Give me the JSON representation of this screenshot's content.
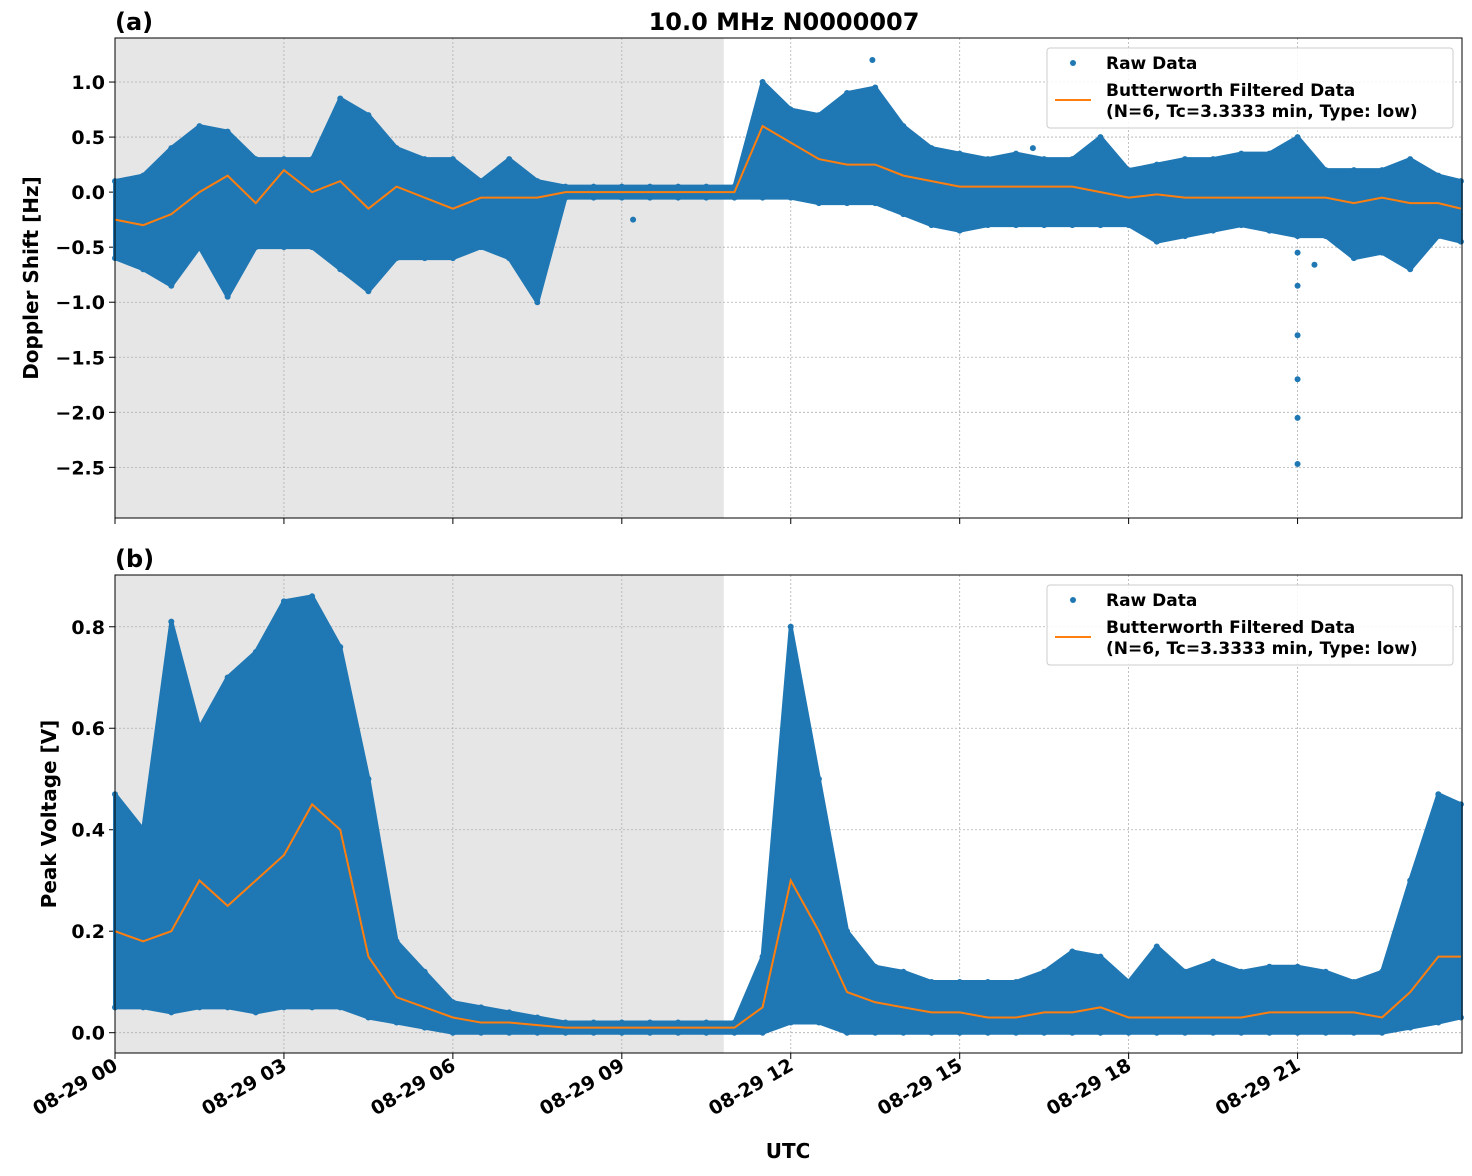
{
  "title": "10.0 MHz N0000007",
  "colors": {
    "raw": "#1f77b4",
    "filtered": "#ff7f0e",
    "shade": "#e6e6e6",
    "grid": "#b0b0b0"
  },
  "chart_data": [
    {
      "type": "scatter+line",
      "panel_label": "(a)",
      "ylabel": "Doppler Shift [Hz]",
      "xlabel": "",
      "xlim_hours": [
        0,
        23.92
      ],
      "ylim": [
        -2.96,
        1.4
      ],
      "yticks": [
        1.0,
        0.5,
        0.0,
        -0.5,
        -1.0,
        -1.5,
        -2.0,
        -2.5
      ],
      "ytick_labels": [
        "1.0",
        "0.5",
        "0.0",
        "−0.5",
        "−1.0",
        "−1.5",
        "−2.0",
        "−2.5"
      ],
      "xticks_hours": [
        0,
        3,
        6,
        9,
        12,
        15,
        18,
        21
      ],
      "xtick_labels": [
        "08-29 00",
        "08-29 03",
        "08-29 06",
        "08-29 09",
        "08-29 12",
        "08-29 15",
        "08-29 18",
        "08-29 21"
      ],
      "shaded_hours": [
        0,
        10.81
      ],
      "grid": true,
      "legend_position": "top-right",
      "legend": [
        "Raw Data",
        "Butterworth Filtered Data",
        "(N=6, Tc=3.3333 min, Type: low)"
      ],
      "x_hours": [
        0,
        0.5,
        1,
        1.5,
        2,
        2.5,
        3,
        3.5,
        4,
        4.5,
        5,
        5.5,
        6,
        6.5,
        7,
        7.5,
        8,
        8.5,
        9,
        9.5,
        10,
        10.5,
        11,
        11.5,
        12,
        12.5,
        13,
        13.5,
        14,
        14.5,
        15,
        15.5,
        16,
        16.5,
        17,
        17.5,
        18,
        18.5,
        19,
        19.5,
        20,
        20.5,
        21,
        21.5,
        22,
        22.5,
        23,
        23.5,
        23.9
      ],
      "series": [
        {
          "name": "Butterworth Filtered Data",
          "kind": "line",
          "values": [
            -0.25,
            -0.3,
            -0.2,
            0.0,
            0.15,
            -0.1,
            0.2,
            0.0,
            0.1,
            -0.15,
            0.05,
            -0.05,
            -0.15,
            -0.05,
            -0.05,
            -0.05,
            0.0,
            0.0,
            0.0,
            0.0,
            0.0,
            0.0,
            0.0,
            0.6,
            0.45,
            0.3,
            0.25,
            0.25,
            0.15,
            0.1,
            0.05,
            0.05,
            0.05,
            0.05,
            0.05,
            0.0,
            -0.05,
            -0.02,
            -0.05,
            -0.05,
            -0.05,
            -0.05,
            -0.05,
            -0.05,
            -0.1,
            -0.05,
            -0.1,
            -0.1,
            -0.15
          ]
        },
        {
          "name": "Raw Data max",
          "kind": "raw_envelope_max",
          "values": [
            0.1,
            0.15,
            0.4,
            0.6,
            0.55,
            0.3,
            0.3,
            0.3,
            0.85,
            0.7,
            0.4,
            0.3,
            0.3,
            0.1,
            0.3,
            0.1,
            0.05,
            0.05,
            0.05,
            0.05,
            0.05,
            0.05,
            0.05,
            1.0,
            0.75,
            0.7,
            0.9,
            0.95,
            0.6,
            0.4,
            0.35,
            0.3,
            0.35,
            0.3,
            0.3,
            0.5,
            0.2,
            0.25,
            0.3,
            0.3,
            0.35,
            0.35,
            0.5,
            0.2,
            0.2,
            0.2,
            0.3,
            0.15,
            0.1
          ]
        },
        {
          "name": "Raw Data min",
          "kind": "raw_envelope_min",
          "values": [
            -0.6,
            -0.7,
            -0.85,
            -0.5,
            -0.95,
            -0.5,
            -0.5,
            -0.5,
            -0.7,
            -0.9,
            -0.6,
            -0.6,
            -0.6,
            -0.5,
            -0.6,
            -1.0,
            -0.05,
            -0.05,
            -0.05,
            -0.05,
            -0.05,
            -0.05,
            -0.05,
            -0.05,
            -0.05,
            -0.1,
            -0.1,
            -0.1,
            -0.2,
            -0.3,
            -0.35,
            -0.3,
            -0.3,
            -0.3,
            -0.3,
            -0.3,
            -0.3,
            -0.45,
            -0.4,
            -0.35,
            -0.3,
            -0.35,
            -0.4,
            -0.4,
            -0.6,
            -0.55,
            -0.7,
            -0.4,
            -0.45
          ]
        },
        {
          "name": "Raw Data outliers",
          "kind": "raw_points",
          "x_hours": [
            13.45,
            16.3,
            21.0,
            21.0,
            21.0,
            21.0,
            21.0,
            21.0,
            21.3,
            9.2
          ],
          "values": [
            1.2,
            0.4,
            -0.55,
            -0.85,
            -1.3,
            -1.7,
            -2.05,
            -2.47,
            -0.66,
            -0.25
          ]
        }
      ]
    },
    {
      "type": "scatter+line",
      "panel_label": "(b)",
      "ylabel": "Peak Voltage [V]",
      "xlabel": "UTC",
      "xlim_hours": [
        0,
        23.92
      ],
      "ylim": [
        -0.04,
        0.902
      ],
      "yticks": [
        0.0,
        0.2,
        0.4,
        0.6,
        0.8
      ],
      "ytick_labels": [
        "0.0",
        "0.2",
        "0.4",
        "0.6",
        "0.8"
      ],
      "xticks_hours": [
        0,
        3,
        6,
        9,
        12,
        15,
        18,
        21
      ],
      "xtick_labels": [
        "08-29 00",
        "08-29 03",
        "08-29 06",
        "08-29 09",
        "08-29 12",
        "08-29 15",
        "08-29 18",
        "08-29 21"
      ],
      "shaded_hours": [
        0,
        10.81
      ],
      "grid": true,
      "legend_position": "top-right",
      "legend": [
        "Raw Data",
        "Butterworth Filtered Data",
        "(N=6, Tc=3.3333 min, Type: low)"
      ],
      "x_hours": [
        0,
        0.5,
        1,
        1.5,
        2,
        2.5,
        3,
        3.5,
        4,
        4.5,
        5,
        5.5,
        6,
        6.5,
        7,
        7.5,
        8,
        8.5,
        9,
        9.5,
        10,
        10.5,
        11,
        11.5,
        12,
        12.5,
        13,
        13.5,
        14,
        14.5,
        15,
        15.5,
        16,
        16.5,
        17,
        17.5,
        18,
        18.5,
        19,
        19.5,
        20,
        20.5,
        21,
        21.5,
        22,
        22.5,
        23,
        23.5,
        23.9
      ],
      "series": [
        {
          "name": "Butterworth Filtered Data",
          "kind": "line",
          "values": [
            0.2,
            0.18,
            0.2,
            0.3,
            0.25,
            0.3,
            0.35,
            0.45,
            0.4,
            0.15,
            0.07,
            0.05,
            0.03,
            0.02,
            0.02,
            0.015,
            0.01,
            0.01,
            0.01,
            0.01,
            0.01,
            0.01,
            0.01,
            0.05,
            0.3,
            0.2,
            0.08,
            0.06,
            0.05,
            0.04,
            0.04,
            0.03,
            0.03,
            0.04,
            0.04,
            0.05,
            0.03,
            0.03,
            0.03,
            0.03,
            0.03,
            0.04,
            0.04,
            0.04,
            0.04,
            0.03,
            0.08,
            0.15,
            0.15
          ]
        },
        {
          "name": "Raw Data max",
          "kind": "raw_envelope_max",
          "values": [
            0.47,
            0.4,
            0.81,
            0.6,
            0.7,
            0.75,
            0.85,
            0.86,
            0.76,
            0.5,
            0.18,
            0.12,
            0.06,
            0.05,
            0.04,
            0.03,
            0.02,
            0.02,
            0.02,
            0.02,
            0.02,
            0.02,
            0.02,
            0.15,
            0.8,
            0.5,
            0.2,
            0.13,
            0.12,
            0.1,
            0.1,
            0.1,
            0.1,
            0.12,
            0.16,
            0.15,
            0.1,
            0.17,
            0.12,
            0.14,
            0.12,
            0.13,
            0.13,
            0.12,
            0.1,
            0.12,
            0.3,
            0.47,
            0.45
          ]
        },
        {
          "name": "Raw Data min",
          "kind": "raw_envelope_min",
          "values": [
            0.05,
            0.05,
            0.04,
            0.05,
            0.05,
            0.04,
            0.05,
            0.05,
            0.05,
            0.03,
            0.02,
            0.01,
            0.0,
            0.0,
            0.0,
            0.0,
            0.0,
            0.0,
            0.0,
            0.0,
            0.0,
            0.0,
            0.0,
            0.0,
            0.02,
            0.02,
            0.0,
            0.0,
            0.0,
            0.0,
            0.0,
            0.0,
            0.0,
            0.0,
            0.0,
            0.0,
            0.0,
            0.0,
            0.0,
            0.0,
            0.0,
            0.0,
            0.0,
            0.0,
            0.0,
            0.0,
            0.01,
            0.02,
            0.03
          ]
        },
        {
          "name": "Raw Data outliers",
          "kind": "raw_points",
          "x_hours": [],
          "values": []
        }
      ]
    }
  ]
}
